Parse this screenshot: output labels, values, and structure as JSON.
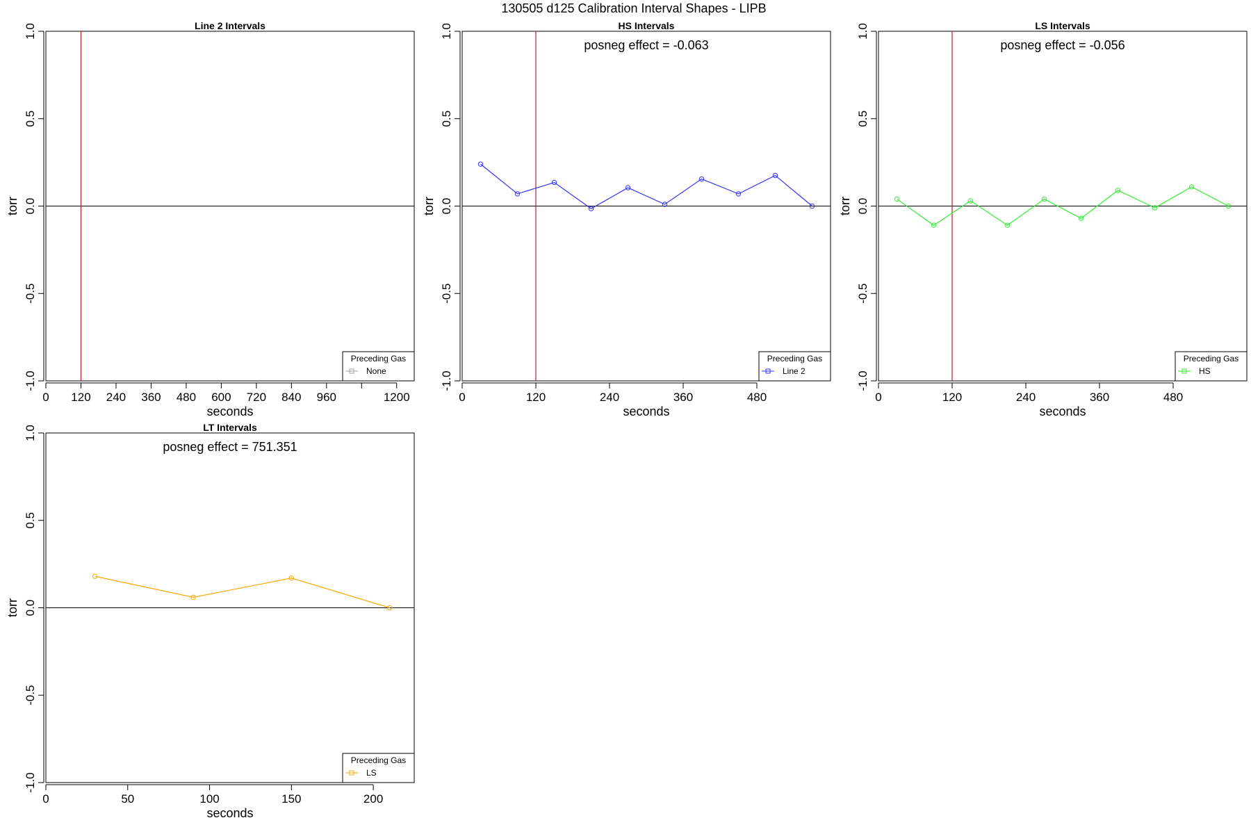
{
  "figure_title": "130505   d125   Calibration Interval Shapes - LIPB",
  "chart_data": [
    {
      "type": "line",
      "title": "Line 2 Intervals",
      "xlabel": "seconds",
      "ylabel": "torr",
      "xlim": [
        0,
        1260
      ],
      "ylim": [
        -1.0,
        1.0
      ],
      "xticks": [
        0,
        120,
        240,
        360,
        480,
        600,
        720,
        840,
        960,
        1080,
        1200
      ],
      "xtick_labels": [
        "0",
        "120",
        "240",
        "360",
        "480",
        "600",
        "720",
        "840",
        "960",
        "",
        "1200"
      ],
      "yticks": [
        -1.0,
        -0.5,
        0.0,
        0.5,
        1.0
      ],
      "ytick_labels": [
        "-1.0",
        "-0.5",
        "0.0",
        "0.5",
        "1.0"
      ],
      "zero_line": true,
      "vline": 120,
      "vline_color": "#b22222",
      "annotation": "",
      "series": [
        {
          "name": "None",
          "color": "#a0a0a0",
          "x": [],
          "y": []
        }
      ],
      "legend": {
        "title": "Preceding Gas",
        "position": "bottom-right"
      }
    },
    {
      "type": "line",
      "title": "HS Intervals",
      "xlabel": "seconds",
      "ylabel": "torr",
      "xlim": [
        0,
        600
      ],
      "ylim": [
        -1.0,
        1.0
      ],
      "xticks": [
        0,
        120,
        240,
        360,
        480
      ],
      "xtick_labels": [
        "0",
        "120",
        "240",
        "360",
        "480"
      ],
      "yticks": [
        -1.0,
        -0.5,
        0.0,
        0.5,
        1.0
      ],
      "ytick_labels": [
        "-1.0",
        "-0.5",
        "0.0",
        "0.5",
        "1.0"
      ],
      "zero_line": true,
      "vline": 120,
      "vline_color": "#b22222",
      "annotation": "posneg effect = -0.063",
      "series": [
        {
          "name": "Line 2",
          "color": "#3333ff",
          "x": [
            30,
            90,
            150,
            210,
            270,
            330,
            390,
            450,
            510,
            570
          ],
          "y": [
            0.24,
            0.07,
            0.135,
            -0.015,
            0.105,
            0.01,
            0.155,
            0.07,
            0.175,
            0.0
          ]
        }
      ],
      "legend": {
        "title": "Preceding Gas",
        "position": "bottom-right"
      }
    },
    {
      "type": "line",
      "title": "LS Intervals",
      "xlabel": "seconds",
      "ylabel": "torr",
      "xlim": [
        0,
        600
      ],
      "ylim": [
        -1.0,
        1.0
      ],
      "xticks": [
        0,
        120,
        240,
        360,
        480
      ],
      "xtick_labels": [
        "0",
        "120",
        "240",
        "360",
        "480"
      ],
      "yticks": [
        -1.0,
        -0.5,
        0.0,
        0.5,
        1.0
      ],
      "ytick_labels": [
        "-1.0",
        "-0.5",
        "0.0",
        "0.5",
        "1.0"
      ],
      "zero_line": true,
      "vline": 120,
      "vline_color": "#b22222",
      "annotation": "posneg effect = -0.056",
      "series": [
        {
          "name": "HS",
          "color": "#33ee33",
          "x": [
            30,
            90,
            150,
            210,
            270,
            330,
            390,
            450,
            510,
            570
          ],
          "y": [
            0.04,
            -0.11,
            0.03,
            -0.11,
            0.04,
            -0.07,
            0.09,
            -0.01,
            0.11,
            0.0
          ]
        }
      ],
      "legend": {
        "title": "Preceding Gas",
        "position": "bottom-right"
      }
    },
    {
      "type": "line",
      "title": "LT Intervals",
      "xlabel": "seconds",
      "ylabel": "torr",
      "xlim": [
        0,
        225
      ],
      "ylim": [
        -1.0,
        1.0
      ],
      "xticks": [
        0,
        50,
        100,
        150,
        200
      ],
      "xtick_labels": [
        "0",
        "50",
        "100",
        "150",
        "200"
      ],
      "yticks": [
        -1.0,
        -0.5,
        0.0,
        0.5,
        1.0
      ],
      "ytick_labels": [
        "-1.0",
        "-0.5",
        "0.0",
        "0.5",
        "1.0"
      ],
      "zero_line": true,
      "vline": null,
      "vline_color": "#b22222",
      "annotation": "posneg effect = 751.351",
      "series": [
        {
          "name": "LS",
          "color": "#ffa500",
          "x": [
            30,
            90,
            150,
            210
          ],
          "y": [
            0.18,
            0.06,
            0.17,
            0.0
          ]
        }
      ],
      "legend": {
        "title": "Preceding Gas",
        "position": "bottom-right"
      }
    }
  ]
}
